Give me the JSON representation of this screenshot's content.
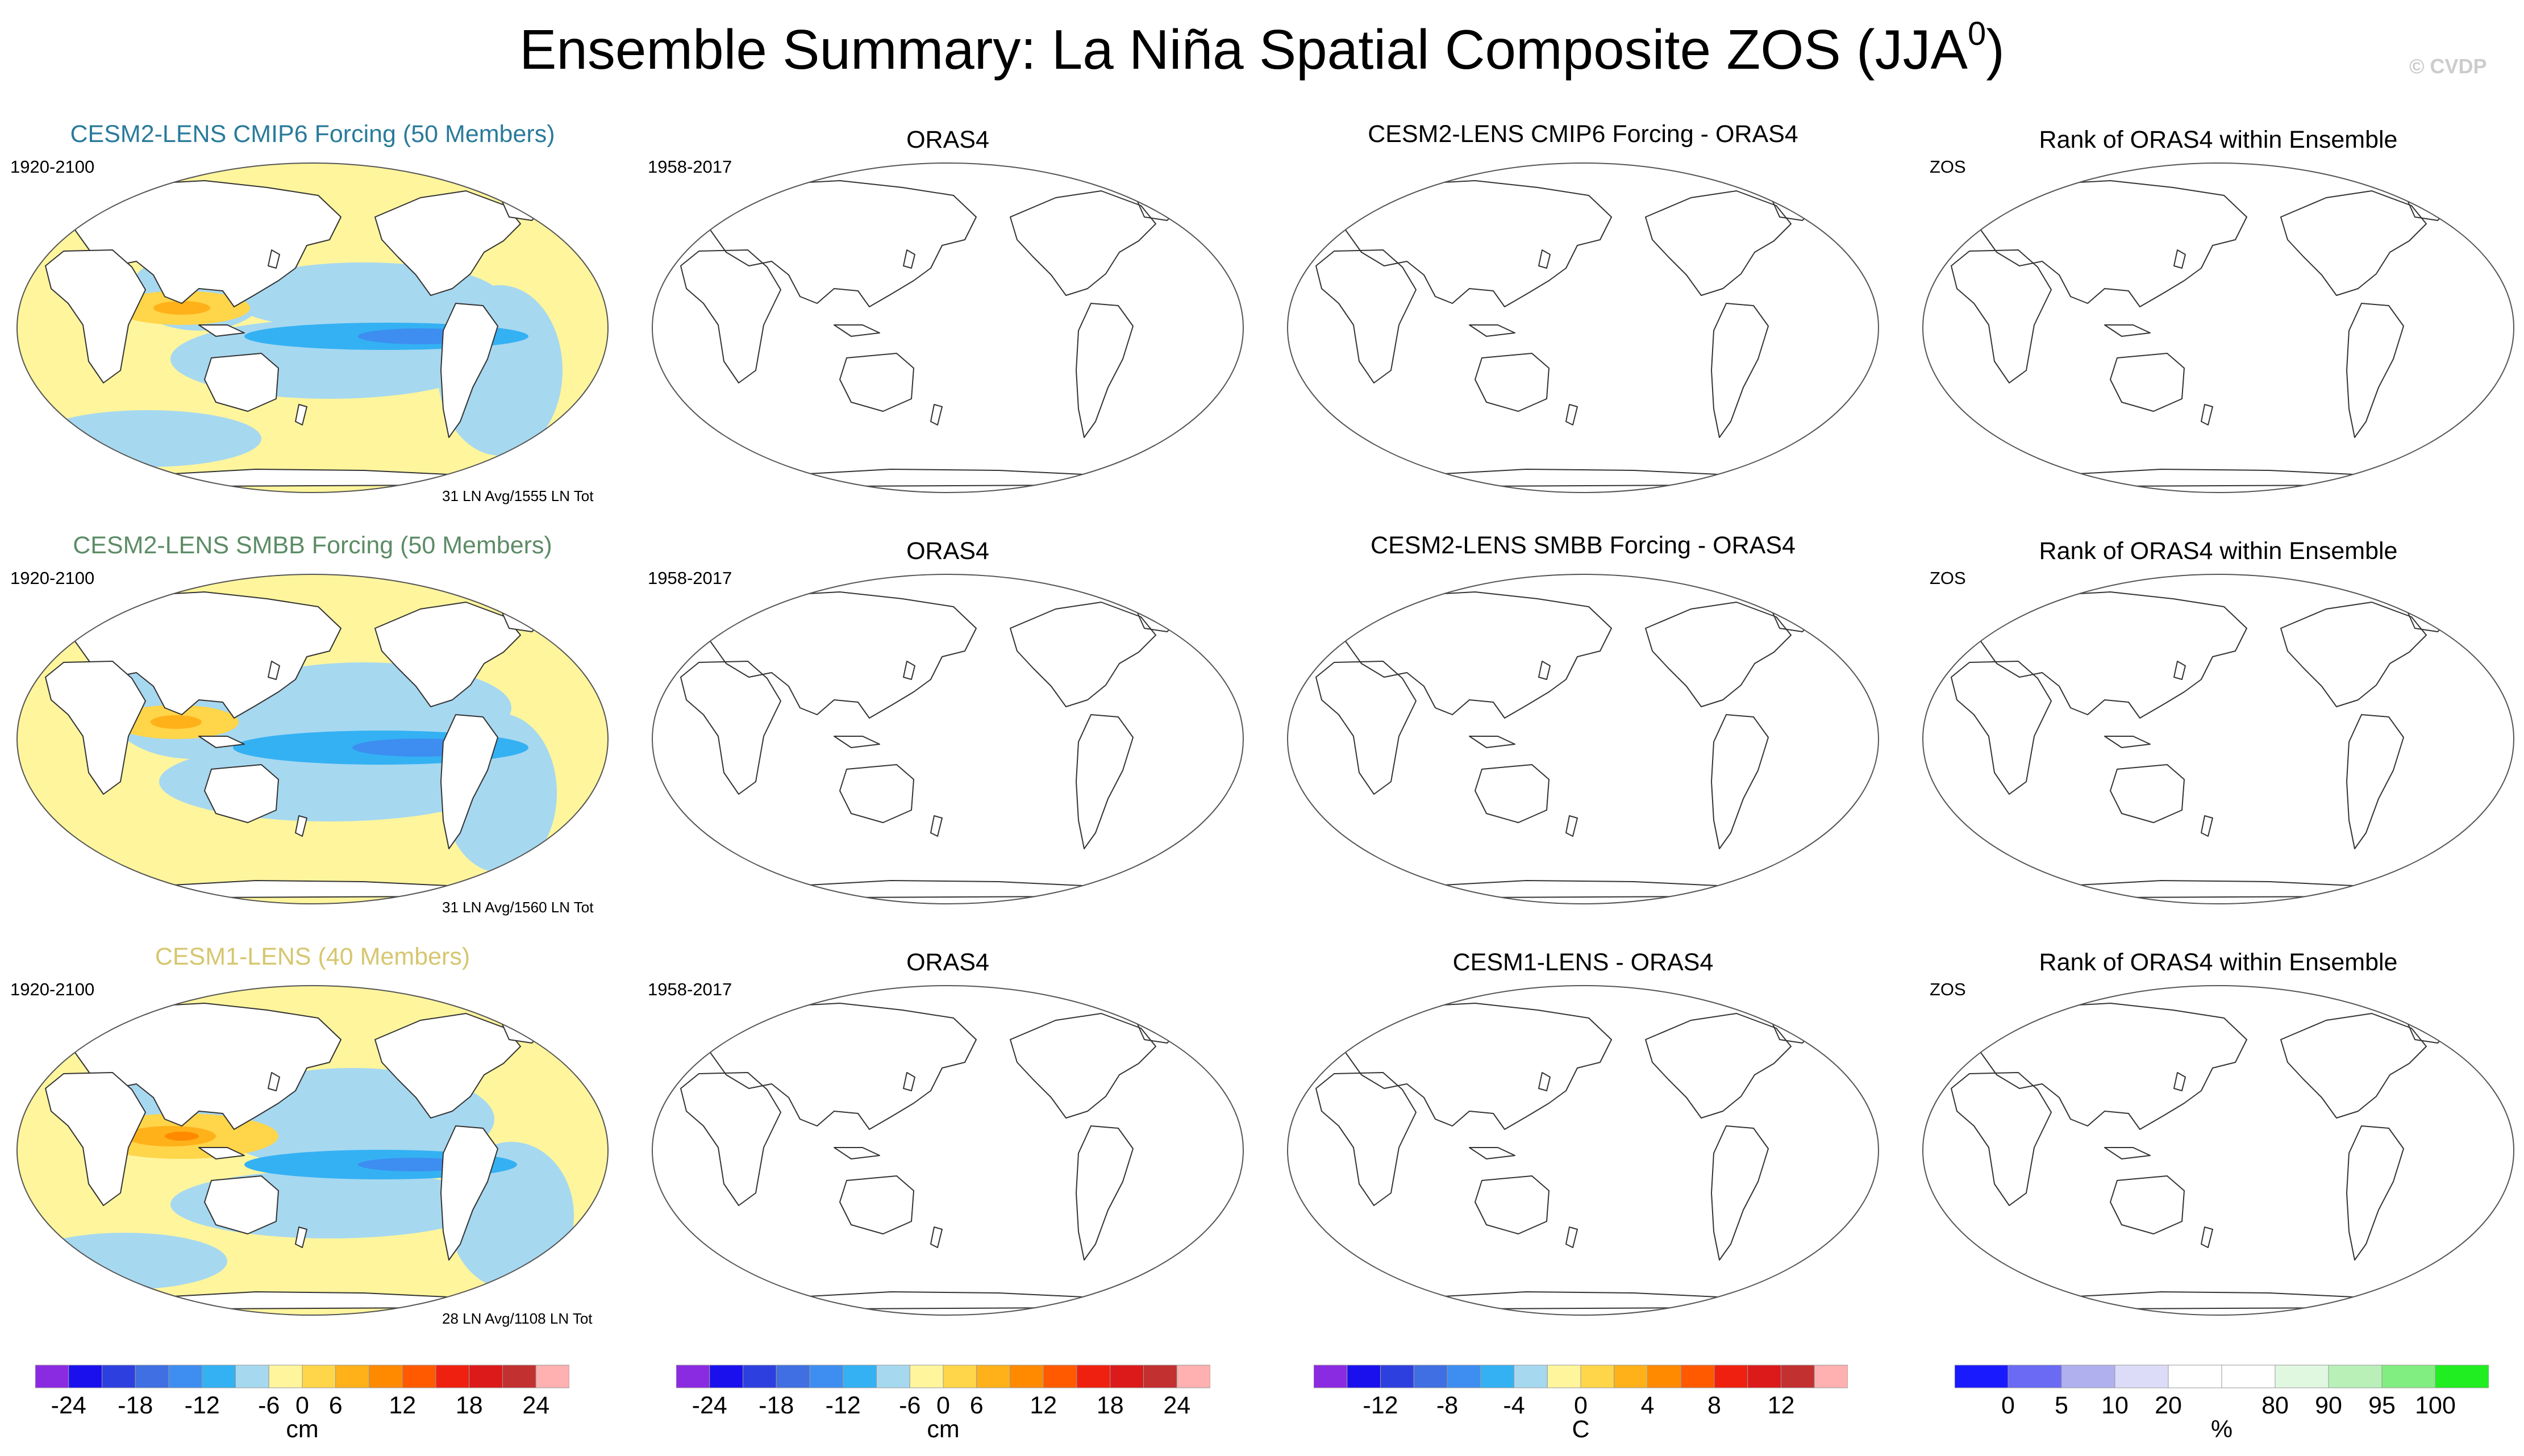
{
  "title": "Ensemble Summary: La Niña Spatial Composite ZOS (JJA",
  "title_superscript": "0",
  "title_close": ")",
  "credit": "© CVDP",
  "rows": [
    {
      "ens_title": "CESM2-LENS CMIP6 Forcing (50 Members)",
      "ens_title_color": "#2a7b9b",
      "ens_years": "1920-2100",
      "ens_count": "31 LN Avg/1555 LN Tot",
      "obs_title": "ORAS4",
      "obs_years": "1958-2017",
      "diff_title": "CESM2-LENS CMIP6 Forcing - ORAS4",
      "rank_title": "Rank of ORAS4 within Ensemble",
      "rank_var": "ZOS"
    },
    {
      "ens_title": "CESM2-LENS SMBB Forcing (50 Members)",
      "ens_title_color": "#5c8c66",
      "ens_years": "1920-2100",
      "ens_count": "31 LN Avg/1560 LN Tot",
      "obs_title": "ORAS4",
      "obs_years": "1958-2017",
      "diff_title": "CESM2-LENS SMBB Forcing - ORAS4",
      "rank_title": "Rank of ORAS4 within Ensemble",
      "rank_var": "ZOS"
    },
    {
      "ens_title": "CESM1-LENS (40 Members)",
      "ens_title_color": "#d6c66f",
      "ens_years": "1920-2100",
      "ens_count": "28 LN Avg/1108 LN Tot",
      "obs_title": "ORAS4",
      "obs_years": "1958-2017",
      "diff_title": "CESM1-LENS - ORAS4",
      "rank_title": "Rank of ORAS4 within Ensemble",
      "rank_var": "ZOS"
    }
  ],
  "legends": [
    {
      "units": "cm",
      "colors": [
        "#8a2be2",
        "#1a10ee",
        "#2e3fe0",
        "#3f6fe3",
        "#3d8ef0",
        "#34b1f3",
        "#a6d8f0",
        "#fff59d",
        "#ffd54a",
        "#ffb11a",
        "#ff8a00",
        "#ff5a00",
        "#f02010",
        "#dc1a1a",
        "#c23030",
        "#ffb0b0"
      ],
      "tick_labels": [
        "-24",
        "-18",
        "-12",
        "-6",
        "0",
        "6",
        "12",
        "18",
        "24"
      ],
      "tick_boundaries": [
        1,
        3,
        5,
        7,
        8,
        9,
        11,
        13,
        15
      ]
    },
    {
      "units": "cm",
      "colors": [
        "#8a2be2",
        "#1a10ee",
        "#2e3fe0",
        "#3f6fe3",
        "#3d8ef0",
        "#34b1f3",
        "#a6d8f0",
        "#fff59d",
        "#ffd54a",
        "#ffb11a",
        "#ff8a00",
        "#ff5a00",
        "#f02010",
        "#dc1a1a",
        "#c23030",
        "#ffb0b0"
      ],
      "tick_labels": [
        "-24",
        "-18",
        "-12",
        "-6",
        "0",
        "6",
        "12",
        "18",
        "24"
      ],
      "tick_boundaries": [
        1,
        3,
        5,
        7,
        8,
        9,
        11,
        13,
        15
      ]
    },
    {
      "units": "C",
      "colors": [
        "#8a2be2",
        "#1a10ee",
        "#2e3fe0",
        "#3f6fe3",
        "#3d8ef0",
        "#34b1f3",
        "#a6d8f0",
        "#fff59d",
        "#ffd54a",
        "#ffb11a",
        "#ff8a00",
        "#ff5a00",
        "#f02010",
        "#dc1a1a",
        "#c23030",
        "#ffb0b0"
      ],
      "tick_labels": [
        "-12",
        "-8",
        "-4",
        "0",
        "4",
        "8",
        "12"
      ],
      "tick_boundaries": [
        2,
        4,
        6,
        8,
        10,
        12,
        14
      ]
    },
    {
      "units": "%",
      "colors": [
        "#1a1aff",
        "#6a6af5",
        "#b0b0ee",
        "#dcdcf8",
        "#ffffff",
        "#ffffff",
        "#e0f8e0",
        "#b8f0b8",
        "#80ee80",
        "#20ee20"
      ],
      "tick_labels": [
        "0",
        "5",
        "10",
        "20",
        "80",
        "90",
        "95",
        "100"
      ],
      "tick_boundaries": [
        1,
        2,
        3,
        4,
        6,
        7,
        8,
        9
      ]
    }
  ]
}
